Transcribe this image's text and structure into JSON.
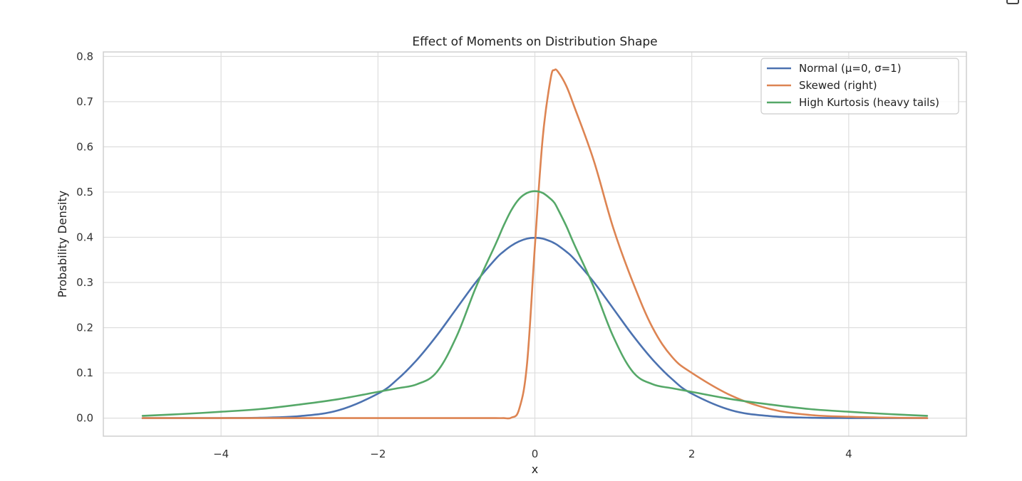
{
  "chart_data": {
    "type": "line",
    "title": "Effect of Moments on Distribution Shape",
    "xlabel": "x",
    "ylabel": "Probability Density",
    "xlim": [
      -5.5,
      5.5
    ],
    "ylim": [
      -0.04,
      0.81
    ],
    "xticks": [
      -4,
      -2,
      0,
      2,
      4
    ],
    "xtick_labels": [
      "−4",
      "−2",
      "0",
      "2",
      "4"
    ],
    "yticks": [
      0.0,
      0.1,
      0.2,
      0.3,
      0.4,
      0.5,
      0.6,
      0.7,
      0.8
    ],
    "ytick_labels": [
      "0.0",
      "0.1",
      "0.2",
      "0.3",
      "0.4",
      "0.5",
      "0.6",
      "0.7",
      "0.8"
    ],
    "grid": true,
    "legend_position": "top-right",
    "x": [
      -5.0,
      -4.5,
      -4.0,
      -3.5,
      -3.0,
      -2.5,
      -2.0,
      -1.75,
      -1.5,
      -1.25,
      -1.0,
      -0.75,
      -0.5,
      -0.4,
      -0.3,
      -0.2,
      -0.1,
      0.0,
      0.1,
      0.2,
      0.25,
      0.3,
      0.4,
      0.5,
      0.75,
      1.0,
      1.25,
      1.5,
      1.75,
      2.0,
      2.5,
      3.0,
      3.5,
      4.0,
      4.5,
      5.0
    ],
    "series": [
      {
        "name": "Normal (μ=0, σ=1)",
        "color": "#4c72b0",
        "values": [
          0.0,
          0.0,
          0.0001,
          0.0009,
          0.0044,
          0.0175,
          0.054,
          0.086,
          0.1295,
          0.1826,
          0.242,
          0.3011,
          0.3521,
          0.3683,
          0.3814,
          0.391,
          0.397,
          0.3989,
          0.397,
          0.391,
          0.3867,
          0.3814,
          0.3683,
          0.3521,
          0.3011,
          0.242,
          0.1826,
          0.1295,
          0.086,
          0.054,
          0.0175,
          0.0044,
          0.0009,
          0.0001,
          0.0,
          0.0
        ]
      },
      {
        "name": "Skewed (right)",
        "color": "#dd8452",
        "values": [
          0.0,
          0.0,
          0.0,
          0.0,
          0.0,
          0.0,
          0.0,
          0.0,
          0.0,
          0.0,
          0.0,
          0.0,
          0.0,
          0.0,
          0.001,
          0.02,
          0.12,
          0.38,
          0.62,
          0.75,
          0.77,
          0.765,
          0.735,
          0.69,
          0.57,
          0.42,
          0.3,
          0.2,
          0.135,
          0.1,
          0.05,
          0.02,
          0.007,
          0.003,
          0.001,
          0.0
        ]
      },
      {
        "name": "High Kurtosis (heavy tails)",
        "color": "#55a868",
        "values": [
          0.005,
          0.009,
          0.014,
          0.02,
          0.03,
          0.042,
          0.058,
          0.066,
          0.075,
          0.102,
          0.18,
          0.29,
          0.385,
          0.425,
          0.46,
          0.485,
          0.498,
          0.502,
          0.498,
          0.485,
          0.476,
          0.46,
          0.425,
          0.385,
          0.29,
          0.18,
          0.102,
          0.075,
          0.066,
          0.058,
          0.042,
          0.03,
          0.02,
          0.014,
          0.009,
          0.005
        ]
      }
    ]
  }
}
